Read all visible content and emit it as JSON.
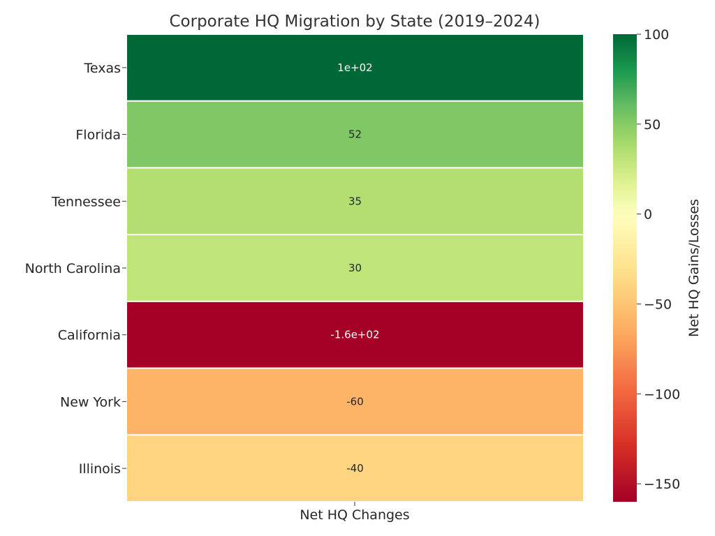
{
  "chart_data": {
    "type": "heatmap",
    "title": "Corporate HQ Migration by State (2019–2024)",
    "xlabel": "Net HQ Changes",
    "ylabel": "",
    "rows": [
      "Texas",
      "Florida",
      "Tennessee",
      "North Carolina",
      "California",
      "New York",
      "Illinois"
    ],
    "columns": [
      "Net HQ Changes"
    ],
    "values": [
      100,
      52,
      35,
      30,
      -160,
      -60,
      -40
    ],
    "annotations": [
      "1e+02",
      "52",
      "35",
      "30",
      "-1.6e+02",
      "-60",
      "-40"
    ],
    "colorbar": {
      "label": "Net HQ Gains/Losses",
      "ticks": [
        "100",
        "50",
        "0",
        "−50",
        "−100",
        "−150"
      ],
      "tick_values": [
        100,
        50,
        0,
        -50,
        -100,
        -150
      ],
      "range": [
        -160,
        100
      ],
      "colormap": "RdYlGn"
    }
  }
}
